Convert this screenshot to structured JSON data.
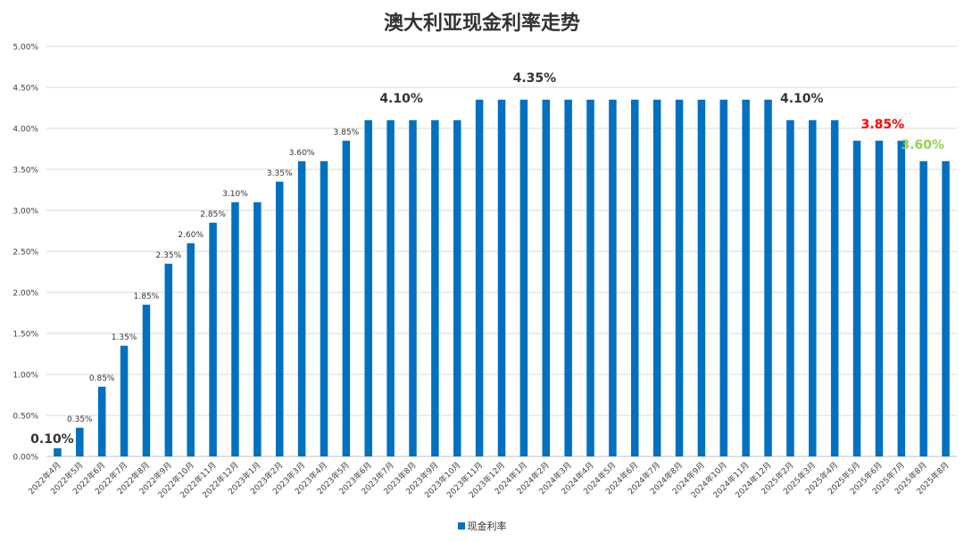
{
  "chart_data": {
    "type": "bar",
    "title": "澳大利亚现金利率走势",
    "categories": [
      "2022年4月",
      "2022年5月",
      "2022年6月",
      "2022年7月",
      "2022年8月",
      "2022年9月",
      "2022年10月",
      "2022年11月",
      "2022年12月",
      "2023年1月",
      "2023年2月",
      "2023年3月",
      "2023年4月",
      "2023年5月",
      "2023年6月",
      "2023年7月",
      "2023年8月",
      "2023年9月",
      "2023年10月",
      "2023年11月",
      "2023年12月",
      "2024年1月",
      "2024年2月",
      "2024年3月",
      "2024年4月",
      "2024年5月",
      "2024年6月",
      "2024年7月",
      "2024年8月",
      "2024年9月",
      "2024年10月",
      "2024年11月",
      "2024年12月",
      "2025年2月",
      "2025年3月",
      "2025年4月",
      "2025年5月",
      "2025年6月",
      "2025年7月",
      "2025年8月",
      "2025年8月"
    ],
    "series": [
      {
        "name": "现金利率",
        "values": [
          0.1,
          0.35,
          0.85,
          1.35,
          1.85,
          2.35,
          2.6,
          2.85,
          3.1,
          3.1,
          3.35,
          3.6,
          3.6,
          3.85,
          4.1,
          4.1,
          4.1,
          4.1,
          4.1,
          4.35,
          4.35,
          4.35,
          4.35,
          4.35,
          4.35,
          4.35,
          4.35,
          4.35,
          4.35,
          4.35,
          4.35,
          4.35,
          4.35,
          4.1,
          4.1,
          4.1,
          3.85,
          3.85,
          3.85,
          3.6,
          3.6
        ]
      }
    ],
    "y_ticks": [
      "0.00%",
      "0.50%",
      "1.00%",
      "1.50%",
      "2.00%",
      "2.50%",
      "3.00%",
      "3.50%",
      "4.00%",
      "4.50%",
      "5.00%"
    ],
    "ylim": [
      0,
      5
    ],
    "grid": true,
    "legend_position": "bottom",
    "bar_color": "#0070c0",
    "data_labels": [
      {
        "index": 0,
        "text": "0.10%",
        "style": "big",
        "color": "#333333"
      },
      {
        "index": 1,
        "text": "0.35%",
        "style": "small",
        "color": "#333333"
      },
      {
        "index": 2,
        "text": "0.85%",
        "style": "small",
        "color": "#333333"
      },
      {
        "index": 3,
        "text": "1.35%",
        "style": "small",
        "color": "#333333"
      },
      {
        "index": 4,
        "text": "1.85%",
        "style": "small",
        "color": "#333333"
      },
      {
        "index": 5,
        "text": "2.35%",
        "style": "small",
        "color": "#333333"
      },
      {
        "index": 6,
        "text": "2.60%",
        "style": "small",
        "color": "#333333"
      },
      {
        "index": 7,
        "text": "2.85%",
        "style": "small",
        "color": "#333333"
      },
      {
        "index": 8,
        "text": "3.10%",
        "style": "small",
        "color": "#333333"
      },
      {
        "index": 10,
        "text": "3.35%",
        "style": "small",
        "color": "#333333"
      },
      {
        "index": 11,
        "text": "3.60%",
        "style": "small",
        "color": "#333333"
      },
      {
        "index": 13,
        "text": "3.85%",
        "style": "small",
        "color": "#333333"
      },
      {
        "index": 15,
        "text": "4.10%",
        "style": "big",
        "color": "#333333"
      },
      {
        "index": 21,
        "text": "4.35%",
        "style": "big",
        "color": "#333333"
      },
      {
        "index": 34,
        "text": "4.10%",
        "style": "big",
        "color": "#333333"
      },
      {
        "index": 37,
        "text": "3.85%",
        "style": "big",
        "color": "#ff0000"
      },
      {
        "index": 39,
        "text": "3.60%",
        "style": "big",
        "color": "#92d050"
      }
    ]
  }
}
